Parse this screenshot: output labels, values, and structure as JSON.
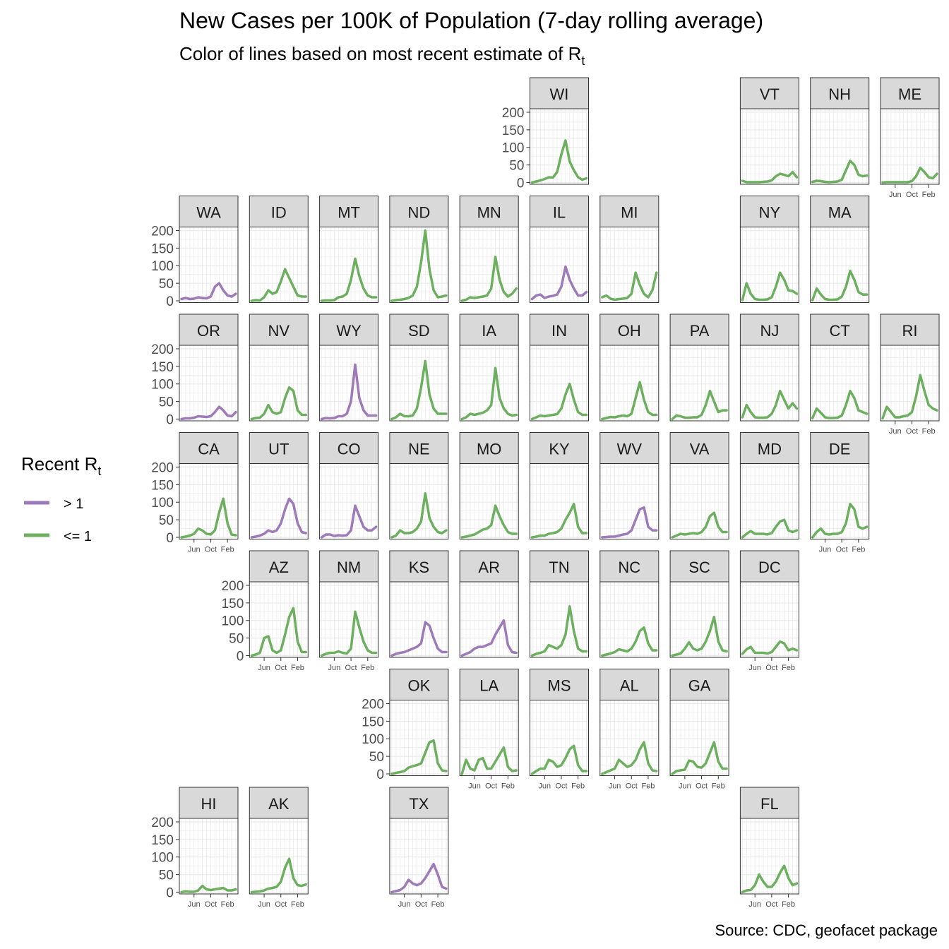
{
  "chart_data": {
    "type": "line",
    "layout": "geofacet small multiples",
    "title": "New Cases per 100K of Population (7-day rolling average)",
    "subtitle": "Color of lines based on most recent estimate of R",
    "subtitle_subscript": "t",
    "caption": "Source: CDC, geofacet package",
    "legend": {
      "title": "Recent R",
      "title_subscript": "t",
      "placement": "left",
      "entries": [
        {
          "label": "> 1",
          "color": "#9E7AB8"
        },
        {
          "label": "<= 1",
          "color": "#6CB05F"
        }
      ]
    },
    "y_ticks": [
      0,
      50,
      100,
      150,
      200
    ],
    "ylim": [
      -5,
      210
    ],
    "x_ticks": [
      "Jun",
      "Oct",
      "Feb"
    ],
    "grid": true,
    "colors": {
      "gt1": "#9E7AB8",
      "le1": "#6CB05F",
      "strip": "#D9D9D9",
      "grid": "#EBEBEB"
    },
    "x": [
      "2020-03",
      "2020-04",
      "2020-05",
      "2020-06",
      "2020-07",
      "2020-08",
      "2020-09",
      "2020-10",
      "2020-11",
      "2020-12",
      "2021-01",
      "2021-02",
      "2021-03",
      "2021-04"
    ],
    "states": [
      {
        "state": "WI",
        "row": 1,
        "col": 6,
        "status": "le1",
        "values": [
          0,
          3,
          6,
          10,
          15,
          14,
          30,
          80,
          120,
          60,
          35,
          15,
          8,
          12
        ]
      },
      {
        "state": "VT",
        "row": 1,
        "col": 9,
        "status": "le1",
        "values": [
          5,
          1,
          1,
          1,
          1,
          2,
          3,
          6,
          18,
          25,
          22,
          18,
          30,
          15
        ]
      },
      {
        "state": "NH",
        "row": 1,
        "col": 10,
        "status": "le1",
        "values": [
          2,
          5,
          4,
          2,
          1,
          2,
          3,
          8,
          35,
          62,
          50,
          22,
          18,
          20
        ]
      },
      {
        "state": "ME",
        "row": 1,
        "col": 11,
        "status": "le1",
        "values": [
          0,
          1,
          1,
          1,
          1,
          1,
          1,
          4,
          18,
          42,
          30,
          15,
          12,
          25
        ]
      },
      {
        "state": "WA",
        "row": 2,
        "col": 1,
        "status": "gt1",
        "values": [
          5,
          8,
          5,
          6,
          10,
          8,
          7,
          12,
          40,
          50,
          30,
          15,
          12,
          20
        ]
      },
      {
        "state": "ID",
        "row": 2,
        "col": 2,
        "status": "le1",
        "values": [
          0,
          2,
          1,
          10,
          30,
          20,
          25,
          55,
          90,
          65,
          40,
          15,
          12,
          12
        ]
      },
      {
        "state": "MT",
        "row": 2,
        "col": 3,
        "status": "le1",
        "values": [
          0,
          1,
          1,
          2,
          10,
          12,
          20,
          60,
          120,
          70,
          35,
          15,
          10,
          10
        ]
      },
      {
        "state": "ND",
        "row": 2,
        "col": 4,
        "status": "le1",
        "values": [
          0,
          2,
          3,
          5,
          8,
          15,
          40,
          110,
          200,
          90,
          30,
          10,
          12,
          15
        ]
      },
      {
        "state": "MN",
        "row": 2,
        "col": 5,
        "status": "le1",
        "values": [
          0,
          3,
          10,
          8,
          10,
          12,
          15,
          35,
          125,
          60,
          25,
          12,
          20,
          35
        ]
      },
      {
        "state": "IL",
        "row": 2,
        "col": 6,
        "status": "gt1",
        "values": [
          5,
          15,
          18,
          8,
          12,
          14,
          18,
          40,
          97,
          60,
          35,
          15,
          15,
          25
        ]
      },
      {
        "state": "MI",
        "row": 2,
        "col": 7,
        "status": "le1",
        "values": [
          10,
          15,
          6,
          3,
          5,
          6,
          8,
          20,
          80,
          45,
          20,
          10,
          30,
          80
        ]
      },
      {
        "state": "NY",
        "row": 2,
        "col": 9,
        "status": "le1",
        "values": [
          2,
          50,
          20,
          5,
          3,
          3,
          4,
          10,
          40,
          80,
          60,
          30,
          28,
          20
        ]
      },
      {
        "state": "MA",
        "row": 2,
        "col": 10,
        "status": "le1",
        "values": [
          2,
          35,
          18,
          5,
          3,
          3,
          4,
          12,
          40,
          85,
          60,
          25,
          18,
          18
        ]
      },
      {
        "state": "OR",
        "row": 3,
        "col": 1,
        "status": "gt1",
        "values": [
          0,
          2,
          2,
          4,
          8,
          7,
          6,
          8,
          20,
          35,
          25,
          10,
          8,
          20
        ]
      },
      {
        "state": "NV",
        "row": 3,
        "col": 2,
        "status": "le1",
        "values": [
          0,
          3,
          4,
          15,
          40,
          20,
          15,
          20,
          60,
          90,
          80,
          25,
          12,
          12
        ]
      },
      {
        "state": "WY",
        "row": 3,
        "col": 3,
        "status": "gt1",
        "values": [
          0,
          3,
          2,
          3,
          8,
          8,
          15,
          50,
          155,
          60,
          25,
          10,
          10,
          10
        ]
      },
      {
        "state": "SD",
        "row": 3,
        "col": 4,
        "status": "le1",
        "values": [
          0,
          5,
          15,
          8,
          8,
          10,
          30,
          90,
          165,
          70,
          30,
          15,
          15,
          15
        ]
      },
      {
        "state": "IA",
        "row": 3,
        "col": 5,
        "status": "le1",
        "values": [
          0,
          5,
          15,
          12,
          15,
          18,
          25,
          40,
          145,
          60,
          30,
          15,
          10,
          12
        ]
      },
      {
        "state": "IN",
        "row": 3,
        "col": 6,
        "status": "le1",
        "values": [
          0,
          5,
          10,
          8,
          10,
          12,
          14,
          30,
          70,
          100,
          55,
          20,
          12,
          12
        ]
      },
      {
        "state": "OH",
        "row": 3,
        "col": 7,
        "status": "le1",
        "values": [
          0,
          3,
          6,
          5,
          8,
          10,
          8,
          15,
          60,
          105,
          55,
          20,
          12,
          12
        ]
      },
      {
        "state": "PA",
        "row": 3,
        "col": 8,
        "status": "le1",
        "values": [
          0,
          10,
          8,
          4,
          4,
          5,
          5,
          12,
          40,
          80,
          50,
          20,
          25,
          25
        ]
      },
      {
        "state": "NJ",
        "row": 3,
        "col": 9,
        "status": "le1",
        "values": [
          5,
          40,
          20,
          5,
          4,
          4,
          5,
          15,
          40,
          80,
          55,
          30,
          45,
          30
        ]
      },
      {
        "state": "CT",
        "row": 3,
        "col": 10,
        "status": "le1",
        "values": [
          3,
          30,
          18,
          5,
          3,
          3,
          4,
          10,
          40,
          80,
          60,
          25,
          20,
          15
        ]
      },
      {
        "state": "RI",
        "row": 3,
        "col": 11,
        "status": "le1",
        "values": [
          2,
          35,
          20,
          5,
          5,
          8,
          10,
          20,
          65,
          125,
          80,
          40,
          30,
          25
        ]
      },
      {
        "state": "CA",
        "row": 4,
        "col": 1,
        "status": "le1",
        "values": [
          0,
          2,
          5,
          10,
          25,
          20,
          10,
          8,
          20,
          70,
          110,
          40,
          8,
          6
        ]
      },
      {
        "state": "UT",
        "row": 4,
        "col": 2,
        "status": "gt1",
        "values": [
          0,
          2,
          5,
          10,
          20,
          15,
          20,
          40,
          80,
          110,
          95,
          40,
          15,
          12
        ]
      },
      {
        "state": "CO",
        "row": 4,
        "col": 3,
        "status": "gt1",
        "values": [
          0,
          8,
          8,
          4,
          6,
          5,
          6,
          20,
          90,
          60,
          30,
          20,
          20,
          30
        ]
      },
      {
        "state": "NE",
        "row": 4,
        "col": 4,
        "status": "le1",
        "values": [
          0,
          5,
          20,
          12,
          12,
          15,
          25,
          45,
          125,
          55,
          30,
          15,
          12,
          20
        ]
      },
      {
        "state": "MO",
        "row": 4,
        "col": 5,
        "status": "le1",
        "values": [
          0,
          2,
          5,
          8,
          15,
          22,
          25,
          35,
          90,
          60,
          35,
          15,
          10,
          10
        ]
      },
      {
        "state": "KY",
        "row": 4,
        "col": 6,
        "status": "le1",
        "values": [
          0,
          2,
          5,
          5,
          10,
          12,
          15,
          25,
          50,
          70,
          95,
          30,
          12,
          12
        ]
      },
      {
        "state": "WV",
        "row": 4,
        "col": 7,
        "status": "gt1",
        "values": [
          0,
          1,
          2,
          2,
          5,
          8,
          10,
          20,
          50,
          80,
          85,
          30,
          20,
          20
        ]
      },
      {
        "state": "VA",
        "row": 4,
        "col": 8,
        "status": "le1",
        "values": [
          0,
          5,
          10,
          8,
          10,
          12,
          10,
          15,
          30,
          60,
          70,
          30,
          15,
          15
        ]
      },
      {
        "state": "MD",
        "row": 4,
        "col": 9,
        "status": "le1",
        "values": [
          0,
          10,
          18,
          10,
          10,
          10,
          8,
          12,
          30,
          45,
          50,
          20,
          15,
          20
        ]
      },
      {
        "state": "DE",
        "row": 4,
        "col": 10,
        "status": "le1",
        "values": [
          0,
          15,
          25,
          10,
          8,
          10,
          10,
          15,
          40,
          95,
          80,
          30,
          25,
          30
        ]
      },
      {
        "state": "AZ",
        "row": 5,
        "col": 2,
        "status": "le1",
        "values": [
          0,
          3,
          8,
          50,
          55,
          15,
          8,
          15,
          60,
          110,
          135,
          40,
          10,
          10
        ]
      },
      {
        "state": "NM",
        "row": 5,
        "col": 3,
        "status": "le1",
        "values": [
          0,
          5,
          8,
          8,
          12,
          8,
          6,
          20,
          125,
          80,
          40,
          15,
          8,
          8
        ]
      },
      {
        "state": "KS",
        "row": 5,
        "col": 4,
        "status": "gt1",
        "values": [
          0,
          5,
          8,
          10,
          15,
          20,
          25,
          35,
          95,
          85,
          50,
          20,
          10,
          10
        ]
      },
      {
        "state": "AR",
        "row": 5,
        "col": 5,
        "status": "gt1",
        "values": [
          0,
          5,
          10,
          20,
          25,
          25,
          30,
          35,
          60,
          80,
          100,
          30,
          10,
          8
        ]
      },
      {
        "state": "TN",
        "row": 5,
        "col": 6,
        "status": "le1",
        "values": [
          0,
          5,
          8,
          12,
          30,
          25,
          20,
          30,
          60,
          140,
          70,
          20,
          12,
          12
        ]
      },
      {
        "state": "NC",
        "row": 5,
        "col": 7,
        "status": "le1",
        "values": [
          0,
          3,
          6,
          10,
          18,
          15,
          12,
          20,
          40,
          70,
          80,
          35,
          15,
          15
        ]
      },
      {
        "state": "SC",
        "row": 5,
        "col": 8,
        "status": "le1",
        "values": [
          0,
          3,
          6,
          20,
          38,
          20,
          15,
          20,
          40,
          70,
          110,
          40,
          15,
          12
        ]
      },
      {
        "state": "DC",
        "row": 5,
        "col": 9,
        "status": "le1",
        "values": [
          5,
          18,
          25,
          8,
          8,
          8,
          6,
          10,
          25,
          40,
          35,
          15,
          20,
          15
        ]
      },
      {
        "state": "OK",
        "row": 6,
        "col": 4,
        "status": "le1",
        "values": [
          0,
          3,
          5,
          8,
          18,
          22,
          25,
          30,
          60,
          90,
          95,
          30,
          10,
          8
        ]
      },
      {
        "state": "LA",
        "row": 6,
        "col": 5,
        "status": "le1",
        "values": [
          0,
          40,
          15,
          10,
          40,
          45,
          15,
          15,
          35,
          55,
          75,
          20,
          8,
          10
        ]
      },
      {
        "state": "MS",
        "row": 6,
        "col": 6,
        "status": "le1",
        "values": [
          0,
          8,
          15,
          15,
          40,
          35,
          20,
          25,
          45,
          70,
          80,
          25,
          8,
          8
        ]
      },
      {
        "state": "AL",
        "row": 6,
        "col": 7,
        "status": "le1",
        "values": [
          0,
          5,
          10,
          15,
          40,
          30,
          20,
          25,
          40,
          70,
          90,
          30,
          10,
          8
        ]
      },
      {
        "state": "GA",
        "row": 6,
        "col": 8,
        "status": "le1",
        "values": [
          0,
          8,
          10,
          12,
          38,
          35,
          20,
          18,
          30,
          60,
          90,
          35,
          15,
          15
        ]
      },
      {
        "state": "HI",
        "row": 7,
        "col": 1,
        "status": "le1",
        "values": [
          0,
          2,
          1,
          1,
          5,
          18,
          8,
          6,
          8,
          10,
          12,
          5,
          5,
          8
        ]
      },
      {
        "state": "AK",
        "row": 7,
        "col": 2,
        "status": "le1",
        "values": [
          0,
          1,
          2,
          5,
          10,
          12,
          15,
          30,
          70,
          95,
          40,
          20,
          18,
          22
        ]
      },
      {
        "state": "TX",
        "row": 7,
        "col": 4,
        "status": "gt1",
        "values": [
          0,
          3,
          6,
          15,
          35,
          25,
          20,
          25,
          40,
          60,
          80,
          50,
          15,
          10
        ]
      },
      {
        "state": "FL",
        "row": 7,
        "col": 9,
        "status": "le1",
        "values": [
          0,
          5,
          6,
          20,
          50,
          30,
          15,
          15,
          30,
          55,
          75,
          40,
          20,
          25
        ]
      }
    ]
  }
}
